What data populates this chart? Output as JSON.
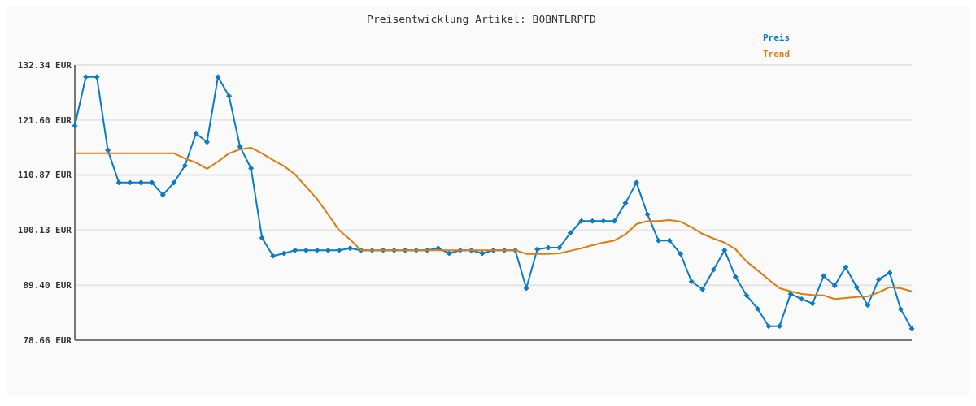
{
  "chart_data": {
    "type": "line",
    "title": "Preisentwicklung Artikel: B0BNTLRPFD",
    "categories": [
      null,
      null,
      null,
      null,
      null,
      null,
      null,
      null,
      null,
      null,
      null,
      null,
      null,
      null,
      null,
      null,
      null,
      null,
      null,
      null,
      null,
      null,
      null,
      null,
      null,
      null,
      null,
      null,
      null,
      null,
      null,
      null,
      null,
      null,
      null,
      null,
      null,
      null,
      null,
      null,
      null,
      null,
      null,
      null,
      null,
      null,
      null,
      null,
      null,
      null,
      null,
      null,
      null,
      null,
      null,
      null,
      null,
      null,
      null,
      null,
      null,
      null,
      null,
      null,
      null,
      null,
      null,
      null,
      null,
      null,
      null,
      null,
      null,
      null,
      null,
      null,
      null
    ],
    "series": [
      {
        "name": "Preis",
        "color": "#0a7bc8",
        "marker": "diamond",
        "values": [
          120.5,
          130,
          130,
          115.7,
          109.4,
          109.4,
          109.4,
          109.4,
          107,
          109.4,
          112.7,
          119,
          117.3,
          130,
          126.3,
          116.4,
          112.2,
          98.6,
          95.1,
          95.6,
          96.2,
          96.2,
          96.2,
          96.2,
          96.2,
          96.6,
          96.2,
          96.2,
          96.2,
          96.2,
          96.2,
          96.2,
          96.2,
          96.6,
          95.6,
          96.2,
          96.2,
          95.6,
          96.2,
          96.2,
          96.2,
          88.8,
          96.4,
          96.7,
          96.7,
          99.6,
          101.9,
          101.9,
          101.9,
          101.9,
          105.4,
          109.4,
          103.2,
          98.1,
          98.1,
          95.5,
          90.1,
          88.6,
          92.4,
          96.2,
          91,
          87.4,
          84.8,
          81.4,
          81.4,
          87.7,
          86.7,
          85.8,
          91.2,
          89.3,
          92.9,
          89,
          85.5,
          90.5,
          91.8,
          84.7,
          80.9
        ]
      },
      {
        "name": "Trend",
        "color": "#e07b0e",
        "marker": "none",
        "values": [
          115.1,
          115.1,
          115.1,
          115.1,
          115.1,
          115.1,
          115.1,
          115.1,
          115.1,
          115.1,
          114.1,
          113.3,
          112.1,
          113.5,
          115.1,
          115.9,
          116.2,
          115.1,
          113.8,
          112.6,
          111,
          108.6,
          106.2,
          103.2,
          100.1,
          98.3,
          96.2,
          96.2,
          96.2,
          96.2,
          96.2,
          96.2,
          96.2,
          96.2,
          96.2,
          96.2,
          96.2,
          96.2,
          96.2,
          96.2,
          96.2,
          95.5,
          95.5,
          95.5,
          95.6,
          96.1,
          96.6,
          97.2,
          97.7,
          98.1,
          99.3,
          101.3,
          101.9,
          101.9,
          102.1,
          101.8,
          100.7,
          99.4,
          98.5,
          97.7,
          96.4,
          94,
          92.3,
          90.5,
          88.8,
          88.2,
          87.7,
          87.5,
          87.4,
          86.7,
          86.9,
          87.1,
          87.2,
          88,
          89,
          88.8,
          88.2
        ]
      }
    ],
    "ylim": [
      78.66,
      132.34
    ],
    "yticks": [
      {
        "value": 78.66,
        "label": "78.66 EUR"
      },
      {
        "value": 89.4,
        "label": "89.40 EUR"
      },
      {
        "value": 100.13,
        "label": "100.13 EUR"
      },
      {
        "value": 110.87,
        "label": "110.87 EUR"
      },
      {
        "value": 121.6,
        "label": "121.60 EUR"
      },
      {
        "value": 132.34,
        "label": "132.34 EUR"
      }
    ],
    "grid": "y",
    "legend": "top right",
    "tick_labels": "y"
  }
}
